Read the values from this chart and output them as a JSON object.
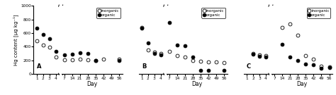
{
  "panel_labels": [
    "A",
    "B",
    "C"
  ],
  "days_early": [
    1,
    2,
    3,
    4
  ],
  "days_late": [
    7,
    14,
    21,
    28,
    35,
    42,
    49,
    56
  ],
  "panel_A": {
    "inorganic_early": [
      490,
      430,
      390,
      255
    ],
    "inorganic_late": [
      210,
      205,
      215,
      205,
      200,
      215,
      null,
      215
    ],
    "organic_early": [
      670,
      580,
      515,
      335
    ],
    "organic_late": [
      280,
      295,
      310,
      300,
      195,
      null,
      null,
      200
    ]
  },
  "panel_B": {
    "inorganic_early": [
      680,
      350,
      320,
      300
    ],
    "inorganic_late": [
      330,
      275,
      255,
      195,
      185,
      175,
      175,
      170
    ],
    "organic_early": [
      670,
      460,
      305,
      285
    ],
    "organic_late": [
      750,
      430,
      415,
      250,
      50,
      50,
      null,
      50
    ]
  },
  "panel_C": {
    "inorganic_early": [
      null,
      300,
      280,
      275
    ],
    "inorganic_late": [
      null,
      680,
      730,
      570,
      270,
      220,
      120,
      110
    ],
    "organic_early": [
      null,
      295,
      265,
      250
    ],
    "organic_late": [
      null,
      440,
      250,
      200,
      150,
      140,
      90,
      100
    ]
  },
  "ylim": [
    0,
    1000
  ],
  "yticks": [
    0,
    200,
    400,
    600,
    800,
    1000
  ],
  "ylabel": "Hg content [µg kg⁻¹]",
  "xlabel": "Day",
  "bg_color": "#f0f0f0",
  "markersize": 3.5
}
